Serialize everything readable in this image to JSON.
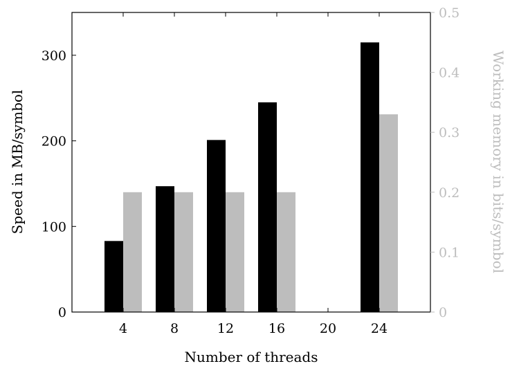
{
  "chart_data": {
    "type": "bar",
    "xlabel": "Number of threads",
    "ylabel_left": "Speed in MB/symbol",
    "ylabel_right": "Working memory in bits/symbol",
    "categories": [
      4,
      8,
      12,
      16,
      20,
      24
    ],
    "x_ticks": [
      "4",
      "8",
      "12",
      "16",
      "20",
      "24"
    ],
    "y_left": {
      "lim": [
        0,
        350
      ],
      "ticks": [
        0,
        100,
        200,
        300
      ],
      "tick_labels": [
        "0",
        "100",
        "200",
        "300"
      ]
    },
    "y_right": {
      "lim": [
        0,
        0.5
      ],
      "ticks": [
        0,
        0.1,
        0.2,
        0.3,
        0.4,
        0.5
      ],
      "tick_labels": [
        "0",
        "0.1",
        "0.2",
        "0.3",
        "0.4",
        "0.5"
      ]
    },
    "series": [
      {
        "axis": "left",
        "color": "#000000",
        "values": [
          83,
          147,
          201,
          245,
          0,
          315
        ]
      },
      {
        "axis": "right",
        "color": "#bdbdbd",
        "values": [
          0.2,
          0.2,
          0.2,
          0.2,
          0,
          0.33
        ]
      }
    ],
    "grid": false,
    "legend": "none"
  }
}
